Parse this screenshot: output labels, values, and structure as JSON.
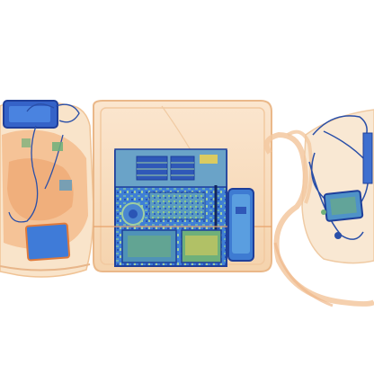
{
  "scene": {
    "kind": "x-ray-baggage-scan",
    "background": "#ffffff",
    "palette": {
      "organic_light": "#f7d6b0",
      "organic_mid": "#f0a46a",
      "organic_dark": "#e07a3a",
      "metal_blue": "#3c6fd0",
      "metal_dark": "#1f3f9a",
      "mixed_green": "#6fb07a",
      "mixed_teal": "#58a6a6",
      "yellow": "#e8cf55"
    }
  }
}
